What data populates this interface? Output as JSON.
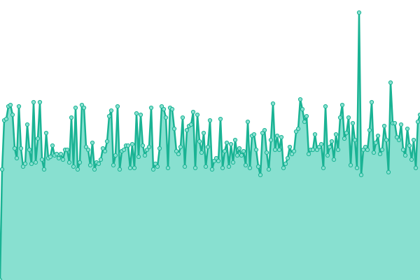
{
  "chart_data": {
    "type": "area",
    "color": "#1ab394",
    "fill_color": "#88e0d0",
    "markers": true,
    "ylim": [
      0,
      400
    ],
    "values": [
      0,
      158,
      228,
      230,
      248,
      250,
      236,
      188,
      174,
      248,
      188,
      162,
      166,
      222,
      186,
      166,
      254,
      168,
      202,
      254,
      172,
      158,
      210,
      174,
      176,
      192,
      178,
      180,
      174,
      180,
      172,
      186,
      186,
      168,
      232,
      162,
      246,
      158,
      168,
      250,
      246,
      190,
      186,
      164,
      196,
      158,
      168,
      166,
      172,
      188,
      184,
      198,
      234,
      242,
      164,
      178,
      248,
      158,
      184,
      186,
      192,
      192,
      160,
      194,
      160,
      238,
      176,
      236,
      192,
      178,
      186,
      190,
      246,
      158,
      166,
      162,
      188,
      248,
      244,
      232,
      160,
      246,
      244,
      216,
      184,
      180,
      190,
      232,
      162,
      214,
      220,
      222,
      240,
      160,
      236,
      198,
      182,
      210,
      162,
      190,
      228,
      158,
      170,
      174,
      170,
      230,
      160,
      184,
      196,
      162,
      194,
      168,
      200,
      178,
      188,
      178,
      184,
      164,
      226,
      160,
      206,
      208,
      186,
      162,
      150,
      210,
      214,
      182,
      158,
      200,
      252,
      186,
      206,
      186,
      204,
      160,
      166,
      174,
      190,
      180,
      184,
      212,
      216,
      258,
      244,
      226,
      234,
      180,
      186,
      186,
      208,
      186,
      190,
      194,
      160,
      248,
      178,
      190,
      198,
      172,
      208,
      186,
      232,
      250,
      202,
      210,
      232,
      164,
      224,
      200,
      160,
      382,
      150,
      186,
      190,
      186,
      214,
      254,
      182,
      196,
      206,
      180,
      186,
      220,
      200,
      154,
      282,
      224,
      224,
      204,
      200,
      222,
      186,
      178,
      216,
      192,
      172,
      200,
      160,
      226,
      236
    ]
  }
}
